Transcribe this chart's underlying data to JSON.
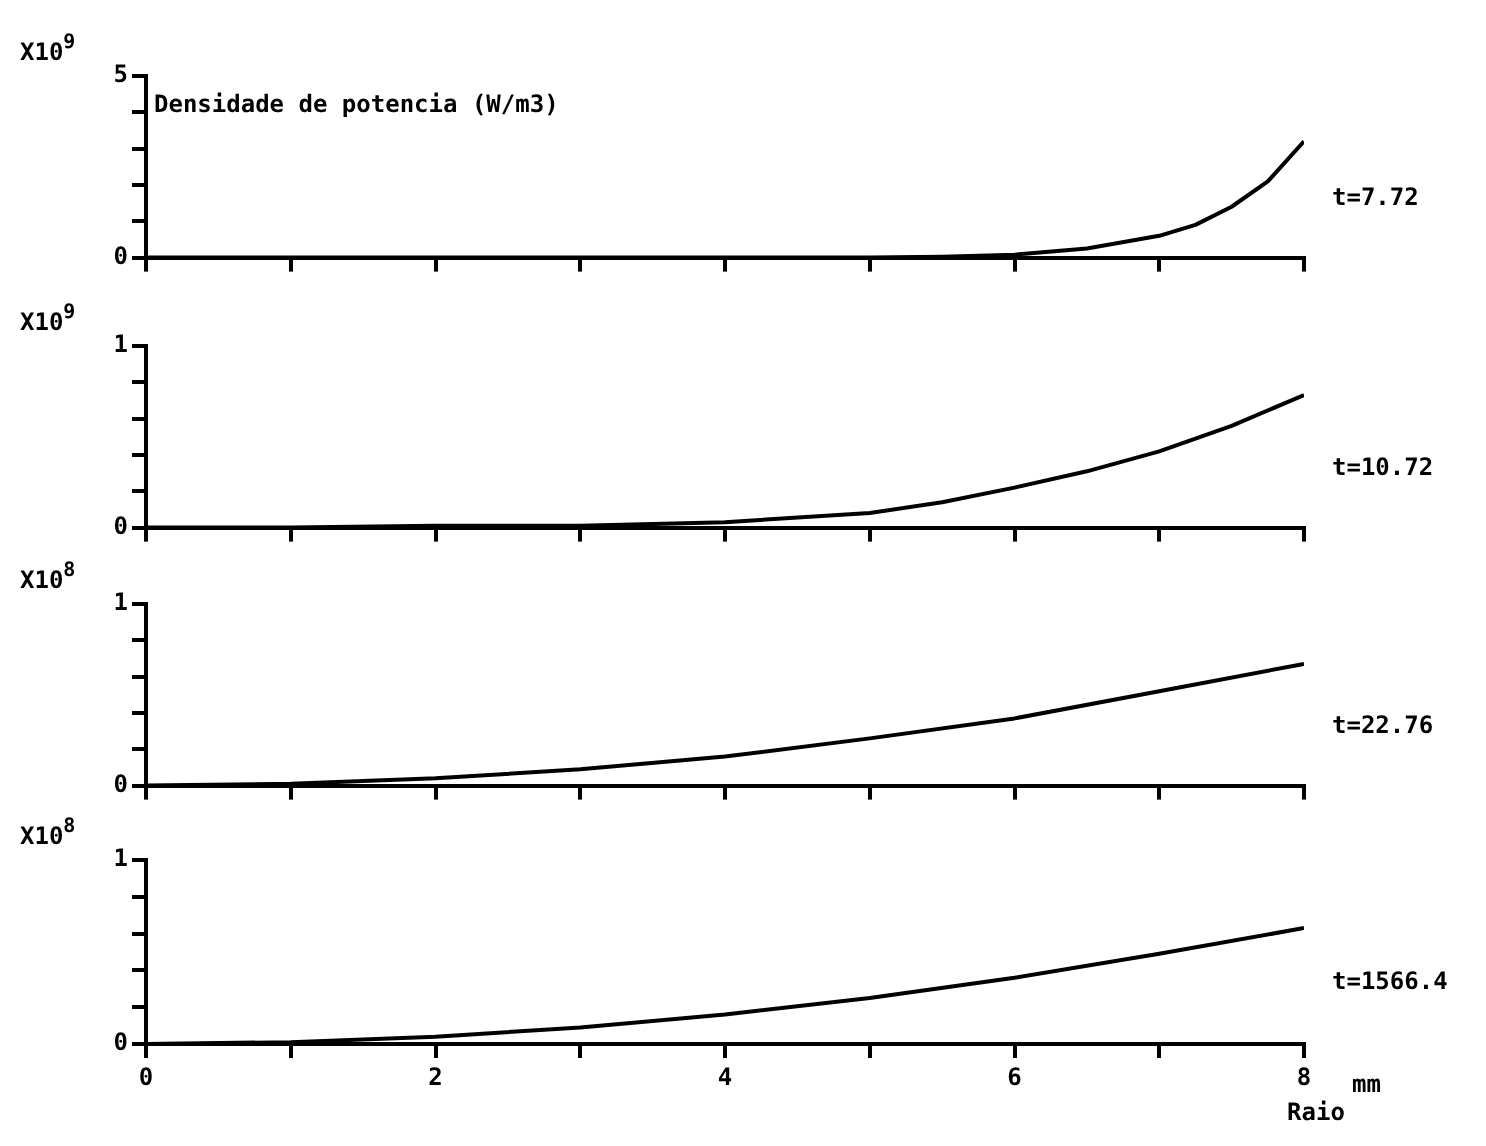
{
  "chart_data": [
    {
      "type": "line",
      "title": "Densidade de potencia (W/m3)",
      "ylabel": "X10$^{9}$",
      "marker": "none",
      "tick_labels": "y",
      "x": [
        0,
        1,
        2,
        3,
        4,
        5,
        5.5,
        6,
        6.5,
        7,
        7.25,
        7.5,
        7.75,
        8
      ],
      "series": [
        {
          "name": "t=7.72",
          "color": "#000000",
          "values": [
            0,
            0,
            0,
            0,
            0,
            0,
            0.02,
            0.08,
            0.25,
            0.6,
            0.9,
            1.4,
            2.1,
            3.2
          ]
        }
      ],
      "xlim": [
        0,
        8
      ],
      "xticks": [
        0,
        {
          "value": 1,
          "label": null
        },
        2,
        {
          "value": 3,
          "label": null
        },
        4,
        {
          "value": 5,
          "label": null
        },
        6,
        {
          "value": 7,
          "label": null
        },
        8
      ],
      "ylim": [
        0,
        5
      ],
      "yticks": [
        0,
        {
          "value": 1,
          "label": null
        },
        {
          "value": 2,
          "label": null
        },
        {
          "value": 3,
          "label": null
        },
        {
          "value": 4,
          "label": null
        },
        5
      ]
    },
    {
      "type": "line",
      "ylabel": "X10$^{9}$",
      "marker": "none",
      "tick_labels": "y",
      "x": [
        0,
        1,
        2,
        3,
        4,
        5,
        5.5,
        6,
        6.5,
        7,
        7.5,
        8
      ],
      "series": [
        {
          "name": "t=10.72",
          "color": "#000000",
          "values": [
            0,
            0,
            0.01,
            0.01,
            0.03,
            0.08,
            0.14,
            0.22,
            0.31,
            0.42,
            0.56,
            0.73
          ]
        }
      ],
      "xlim": [
        0,
        8
      ],
      "xticks": [
        0,
        {
          "value": 1,
          "label": null
        },
        2,
        {
          "value": 3,
          "label": null
        },
        4,
        {
          "value": 5,
          "label": null
        },
        6,
        {
          "value": 7,
          "label": null
        },
        8
      ],
      "ylim": [
        0,
        1
      ],
      "yticks": [
        0,
        {
          "value": 0.2,
          "label": null
        },
        {
          "value": 0.4,
          "label": null
        },
        {
          "value": 0.6,
          "label": null
        },
        {
          "value": 0.8,
          "label": null
        },
        1
      ]
    },
    {
      "type": "line",
      "ylabel": "X10$^{8}$",
      "marker": "none",
      "tick_labels": "y",
      "x": [
        0,
        1,
        2,
        3,
        4,
        5,
        6,
        7,
        8
      ],
      "series": [
        {
          "name": "t=22.76",
          "color": "#000000",
          "values": [
            0,
            0.01,
            0.04,
            0.09,
            0.16,
            0.26,
            0.37,
            0.52,
            0.67
          ]
        }
      ],
      "xlim": [
        0,
        8
      ],
      "xticks": [
        0,
        {
          "value": 1,
          "label": null
        },
        2,
        {
          "value": 3,
          "label": null
        },
        4,
        {
          "value": 5,
          "label": null
        },
        6,
        {
          "value": 7,
          "label": null
        },
        8
      ],
      "ylim": [
        0,
        1
      ],
      "yticks": [
        0,
        {
          "value": 0.2,
          "label": null
        },
        {
          "value": 0.4,
          "label": null
        },
        {
          "value": 0.6,
          "label": null
        },
        {
          "value": 0.8,
          "label": null
        },
        1
      ]
    },
    {
      "type": "line",
      "ylabel": "X10$^{8}$",
      "xlabel": "Raio",
      "annotations": [
        "mm"
      ],
      "marker": "none",
      "x": [
        0,
        1,
        2,
        3,
        4,
        5,
        6,
        7,
        8
      ],
      "series": [
        {
          "name": "t=1566.4",
          "color": "#000000",
          "values": [
            0,
            0.01,
            0.04,
            0.09,
            0.16,
            0.25,
            0.36,
            0.49,
            0.63
          ]
        }
      ],
      "xlim": [
        0,
        8
      ],
      "xticks": [
        0,
        {
          "value": 1,
          "label": null
        },
        2,
        {
          "value": 3,
          "label": null
        },
        4,
        {
          "value": 5,
          "label": null
        },
        6,
        {
          "value": 7,
          "label": null
        },
        8
      ],
      "ylim": [
        0,
        1
      ],
      "yticks": [
        0,
        {
          "value": 0.2,
          "label": null
        },
        {
          "value": 0.4,
          "label": null
        },
        {
          "value": 0.6,
          "label": null
        },
        {
          "value": 0.8,
          "label": null
        },
        1
      ]
    }
  ]
}
